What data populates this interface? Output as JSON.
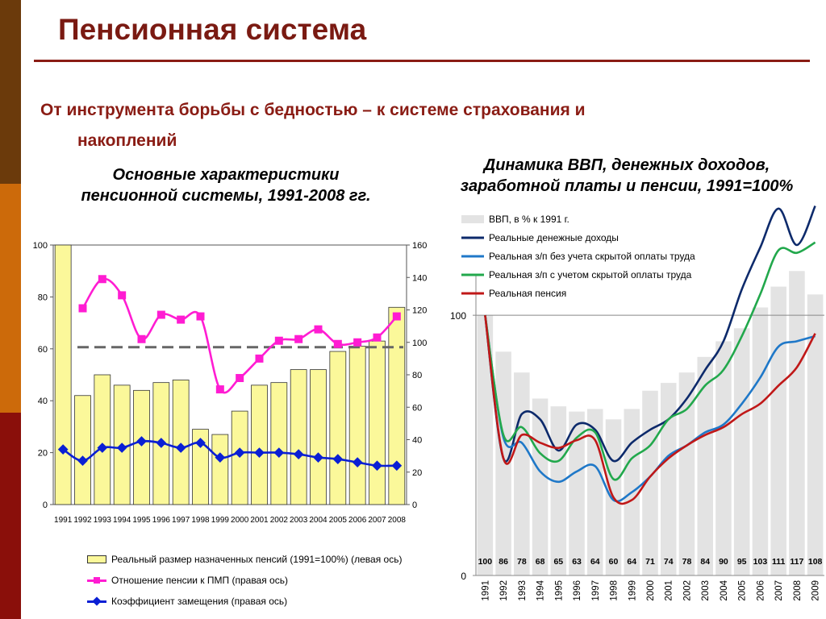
{
  "slide": {
    "title": "Пенсионная система",
    "subtitle_line1": "От инструмента борьбы с бедностью – к системе страхования и",
    "subtitle_line2": "накоплений",
    "accent_color": "#8a1c14"
  },
  "left_caption": {
    "line1": "Основные характеристики",
    "line2": "пенсионной системы, 1991-2008 гг."
  },
  "right_caption": {
    "line1": "Динамика ВВП, денежных доходов,",
    "line2": "заработной платы и пенсии, 1991=100%"
  },
  "chart_data": [
    {
      "type": "bar",
      "categories": [
        "1991",
        "1992",
        "1993",
        "1994",
        "1995",
        "1996",
        "1997",
        "1998",
        "1999",
        "2000",
        "2001",
        "2002",
        "2003",
        "2004",
        "2005",
        "2006",
        "2007",
        "2008"
      ],
      "left_axis": {
        "min": 0,
        "max": 100,
        "ticks": [
          0,
          20,
          40,
          60,
          80,
          100
        ]
      },
      "right_axis": {
        "min": 0,
        "max": 160,
        "ticks": [
          0,
          20,
          40,
          60,
          80,
          100,
          120,
          140,
          160
        ]
      },
      "grid": false,
      "reference_line": {
        "axis": "right",
        "value": 97,
        "style": "dashed",
        "color": "#666666"
      },
      "legend_position": "bottom",
      "series": [
        {
          "name": "Реальный размер назначенных пенсий (1991=100%) (левая ось)",
          "kind": "bar",
          "axis": "left",
          "color": "#fbf89a",
          "values": [
            100,
            42,
            50,
            46,
            44,
            47,
            48,
            29,
            27,
            36,
            46,
            47,
            52,
            52,
            59,
            61,
            63,
            76
          ]
        },
        {
          "name": "Отношение пенсии к ПМП (правая ось)",
          "kind": "line",
          "axis": "right",
          "color": "#ff1cd2",
          "marker": "square",
          "values": [
            null,
            121,
            139,
            129,
            102,
            117,
            114,
            116,
            71,
            78,
            90,
            101,
            102,
            108,
            99,
            100,
            103,
            116
          ]
        },
        {
          "name": "Коэффициент замещения (правая ось)",
          "kind": "line",
          "axis": "right",
          "color": "#0a1fd4",
          "marker": "diamond",
          "values": [
            34,
            27,
            35,
            35,
            39,
            38,
            35,
            38,
            29,
            32,
            32,
            32,
            31,
            29,
            28,
            26,
            24,
            24
          ]
        }
      ]
    },
    {
      "type": "bar",
      "categories": [
        "1991",
        "1992",
        "1993",
        "1994",
        "1995",
        "1996",
        "1997",
        "1998",
        "1999",
        "2000",
        "2001",
        "2002",
        "2003",
        "2004",
        "2005",
        "2006",
        "2007",
        "2008",
        "2009"
      ],
      "y_axis": {
        "min": 0,
        "max": 140,
        "tick_labels": [
          0,
          100
        ]
      },
      "grid": false,
      "legend_position": "top-left",
      "series": [
        {
          "name": "ВВП, в % к 1991 г.",
          "kind": "bar",
          "color": "#e3e3e3",
          "values": [
            100,
            86,
            78,
            68,
            65,
            63,
            64,
            60,
            64,
            71,
            74,
            78,
            84,
            90,
            95,
            103,
            111,
            117,
            108
          ],
          "data_labels": [
            "100",
            "86",
            "78",
            "68",
            "65",
            "63",
            "64",
            "60",
            "64",
            "71",
            "74",
            "78",
            "84",
            "90",
            "95",
            "103",
            "111",
            "117",
            "108"
          ]
        },
        {
          "name": "Реальные денежные доходы",
          "kind": "line",
          "color": "#0d2a6b",
          "values": [
            100,
            45,
            62,
            60,
            48,
            58,
            56,
            44,
            51,
            56,
            60,
            68,
            79,
            90,
            110,
            126,
            141,
            127,
            142
          ]
        },
        {
          "name": "Реальная з/п без учета скрытой оплаты труда",
          "kind": "line",
          "color": "#1f78c8",
          "values": [
            100,
            53,
            51,
            40,
            36,
            40,
            42,
            29,
            32,
            38,
            46,
            50,
            55,
            58,
            66,
            76,
            88,
            90,
            92
          ]
        },
        {
          "name": "Реальная з/п с учетом скрытой оплаты труда",
          "kind": "line",
          "color": "#22a84c",
          "values": [
            100,
            54,
            57,
            47,
            44,
            53,
            55,
            37,
            45,
            50,
            60,
            64,
            73,
            79,
            92,
            108,
            125,
            124,
            128
          ]
        },
        {
          "name": "Реальная пенсия",
          "kind": "line",
          "color": "#c01818",
          "values": [
            100,
            45,
            54,
            51,
            49,
            52,
            52,
            30,
            29,
            38,
            45,
            50,
            54,
            57,
            62,
            66,
            73,
            80,
            93
          ]
        }
      ]
    }
  ]
}
